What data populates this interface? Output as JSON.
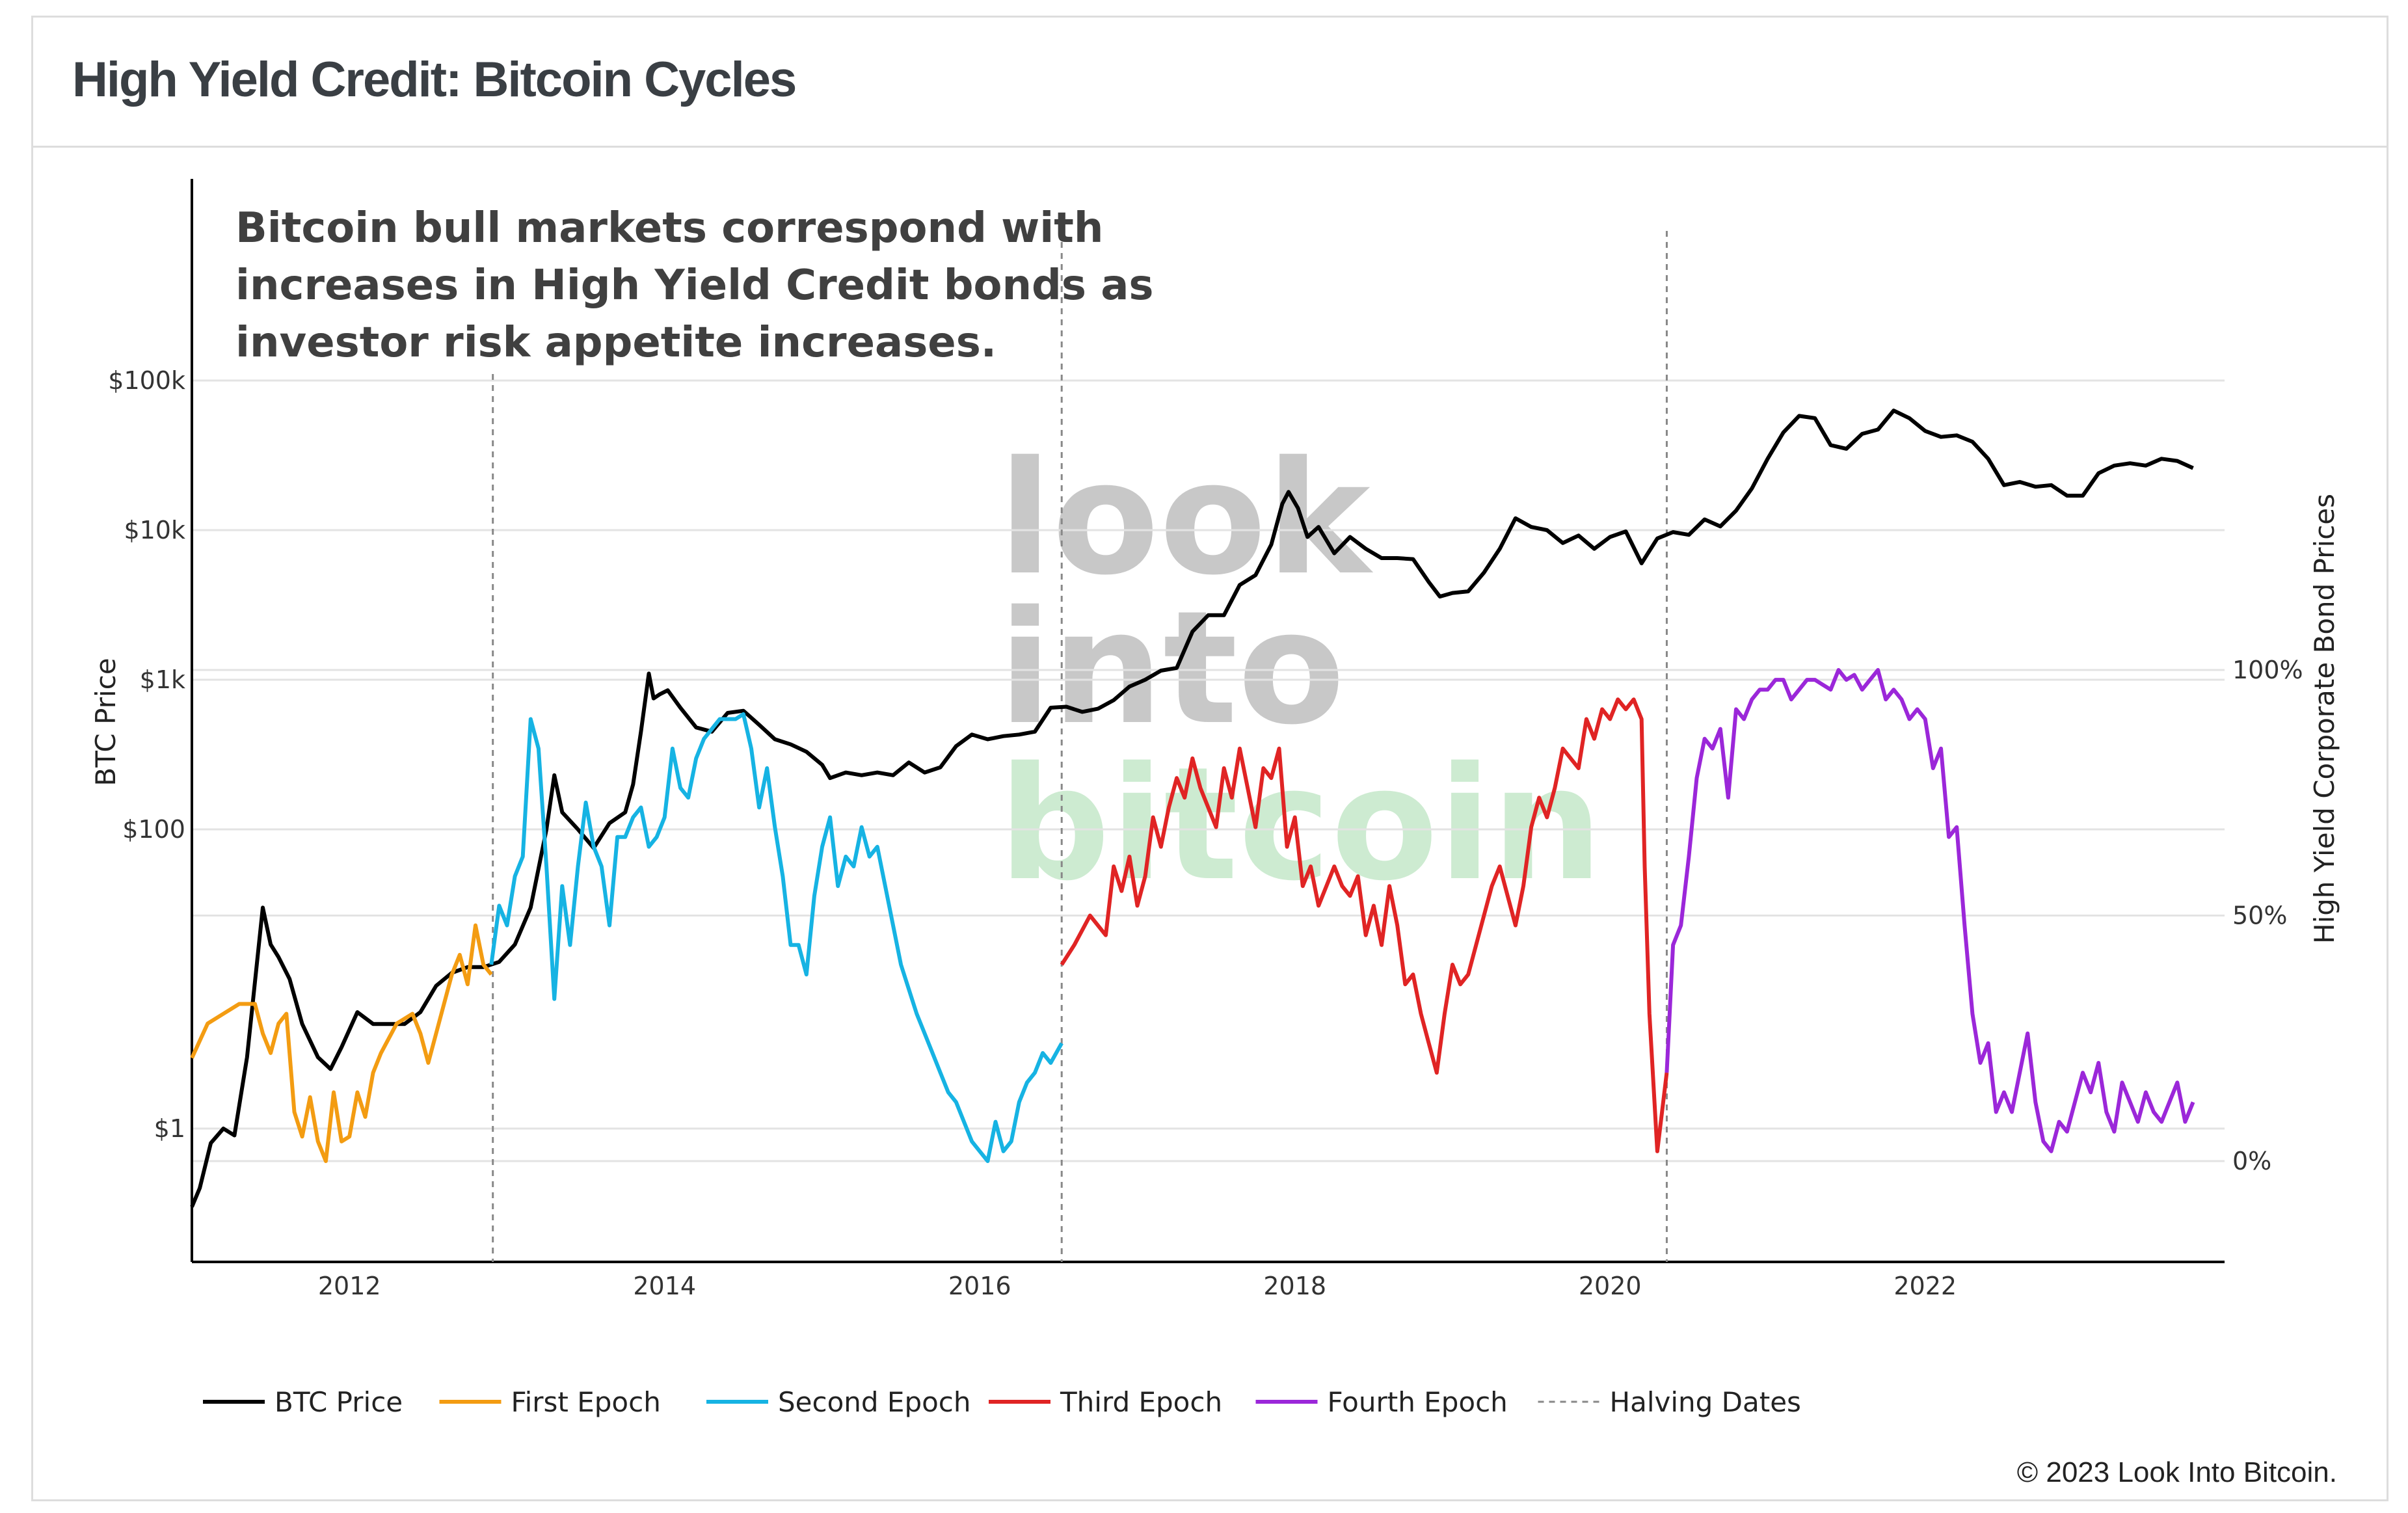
{
  "page": {
    "title": "High Yield Credit: Bitcoin Cycles",
    "copyright": "© 2023 Look Into Bitcoin."
  },
  "colors": {
    "btc": "#000000",
    "first": "#f39c12",
    "second": "#16b3e3",
    "third": "#e02424",
    "fourth": "#9b27d9",
    "halving": "#888888",
    "grid": "#e3e3e3",
    "watermark_gray": "#c8c8c8",
    "watermark_green": "#cdebd1"
  },
  "chart_data": {
    "type": "line",
    "annotation": [
      "Bitcoin bull markets correspond with",
      "increases in High Yield Credit bonds as",
      "investor risk appetite increases."
    ],
    "watermark": [
      "look",
      "into",
      "bitcoin"
    ],
    "xlim": [
      2011.0,
      2023.9
    ],
    "x_ticks": [
      2012,
      2014,
      2016,
      2018,
      2020,
      2022
    ],
    "x_tick_labels": [
      "2012",
      "2014",
      "2016",
      "2018",
      "2020",
      "2022"
    ],
    "ylabel_left": "BTC Price",
    "ylabel_right": "High Yield Corporate Bond Prices",
    "y_left_scale": "log",
    "y_left_ticks": [
      1,
      100,
      1000,
      10000,
      100000
    ],
    "y_left_tick_labels": [
      "$1",
      "$100",
      "$1k",
      "$10k",
      "$100k"
    ],
    "y_right_ticks": [
      0,
      50,
      100
    ],
    "y_right_tick_labels": [
      "0%",
      "50%",
      "100%"
    ],
    "grid": true,
    "halving_dates": [
      2012.91,
      2016.52,
      2020.36
    ],
    "legend": {
      "position": "bottom",
      "items": [
        {
          "label": "BTC Price",
          "key": "btc",
          "dash": false
        },
        {
          "label": "First Epoch",
          "key": "first",
          "dash": false
        },
        {
          "label": "Second Epoch",
          "key": "second",
          "dash": false
        },
        {
          "label": "Third Epoch",
          "key": "third",
          "dash": false
        },
        {
          "label": "Fourth Epoch",
          "key": "fourth",
          "dash": false
        },
        {
          "label": "Halving Dates",
          "key": "halving",
          "dash": true
        }
      ]
    },
    "series": [
      {
        "name": "BTC Price",
        "key": "btc",
        "axis": "left",
        "x": [
          2011.0,
          2011.05,
          2011.12,
          2011.2,
          2011.27,
          2011.35,
          2011.42,
          2011.45,
          2011.5,
          2011.55,
          2011.62,
          2011.7,
          2011.8,
          2011.88,
          2011.95,
          2012.05,
          2012.15,
          2012.25,
          2012.35,
          2012.45,
          2012.55,
          2012.65,
          2012.75,
          2012.85,
          2012.95,
          2013.05,
          2013.15,
          2013.25,
          2013.3,
          2013.35,
          2013.45,
          2013.55,
          2013.65,
          2013.75,
          2013.8,
          2013.85,
          2013.9,
          2013.93,
          2013.97,
          2014.02,
          2014.1,
          2014.2,
          2014.3,
          2014.4,
          2014.5,
          2014.6,
          2014.7,
          2014.8,
          2014.9,
          2015.0,
          2015.05,
          2015.15,
          2015.25,
          2015.35,
          2015.45,
          2015.55,
          2015.65,
          2015.75,
          2015.85,
          2015.95,
          2016.05,
          2016.15,
          2016.25,
          2016.35,
          2016.45,
          2016.55,
          2016.65,
          2016.75,
          2016.85,
          2016.95,
          2017.05,
          2017.15,
          2017.25,
          2017.35,
          2017.45,
          2017.55,
          2017.65,
          2017.75,
          2017.85,
          2017.92,
          2017.96,
          2018.02,
          2018.08,
          2018.15,
          2018.25,
          2018.35,
          2018.45,
          2018.55,
          2018.65,
          2018.75,
          2018.85,
          2018.92,
          2019.0,
          2019.1,
          2019.2,
          2019.3,
          2019.4,
          2019.5,
          2019.6,
          2019.7,
          2019.8,
          2019.9,
          2020.0,
          2020.1,
          2020.2,
          2020.3,
          2020.4,
          2020.5,
          2020.6,
          2020.7,
          2020.8,
          2020.9,
          2021.0,
          2021.1,
          2021.2,
          2021.3,
          2021.4,
          2021.5,
          2021.6,
          2021.7,
          2021.8,
          2021.9,
          2022.0,
          2022.1,
          2022.2,
          2022.3,
          2022.4,
          2022.5,
          2022.6,
          2022.7,
          2022.8,
          2022.9,
          2023.0,
          2023.1,
          2023.2,
          2023.3,
          2023.4,
          2023.5,
          2023.6,
          2023.7
        ],
        "y": [
          0.3,
          0.4,
          0.8,
          1.0,
          0.9,
          3.0,
          15,
          30,
          17,
          14,
          10,
          5,
          3,
          2.5,
          3.5,
          6,
          5,
          5,
          5,
          6,
          9,
          11,
          12,
          12,
          13,
          17,
          30,
          100,
          230,
          130,
          100,
          75,
          110,
          130,
          200,
          450,
          1100,
          750,
          800,
          850,
          650,
          480,
          450,
          600,
          620,
          500,
          400,
          370,
          330,
          270,
          220,
          240,
          230,
          240,
          230,
          280,
          240,
          260,
          360,
          430,
          400,
          420,
          430,
          450,
          650,
          660,
          610,
          640,
          730,
          900,
          1000,
          1150,
          1200,
          2100,
          2700,
          2700,
          4300,
          5000,
          8000,
          15000,
          18000,
          14000,
          9000,
          10500,
          7000,
          9000,
          7500,
          6500,
          6500,
          6400,
          4500,
          3600,
          3800,
          3900,
          5200,
          7500,
          12000,
          10500,
          10000,
          8200,
          9200,
          7500,
          9000,
          9800,
          6000,
          8800,
          9700,
          9300,
          11800,
          10600,
          13500,
          19000,
          30000,
          45000,
          58000,
          56000,
          37000,
          35000,
          44000,
          47000,
          63000,
          56000,
          46000,
          42000,
          43000,
          39000,
          30000,
          20000,
          21000,
          19500,
          20000,
          17000,
          17000,
          24000,
          27000,
          28000,
          27000,
          30000,
          29000,
          26000
        ]
      },
      {
        "name": "First Epoch",
        "key": "first",
        "axis": "right",
        "x": [
          2011.0,
          2011.1,
          2011.2,
          2011.3,
          2011.4,
          2011.45,
          2011.5,
          2011.55,
          2011.6,
          2011.65,
          2011.7,
          2011.75,
          2011.8,
          2011.85,
          2011.9,
          2011.95,
          2012.0,
          2012.05,
          2012.1,
          2012.15,
          2012.2,
          2012.3,
          2012.4,
          2012.45,
          2012.5,
          2012.6,
          2012.65,
          2012.7,
          2012.75,
          2012.8,
          2012.85,
          2012.9
        ],
        "y": [
          21,
          28,
          30,
          32,
          32,
          26,
          22,
          28,
          30,
          10,
          5,
          13,
          4,
          0,
          14,
          4,
          5,
          14,
          9,
          18,
          22,
          28,
          30,
          26,
          20,
          32,
          38,
          42,
          36,
          48,
          40,
          38
        ]
      },
      {
        "name": "Second Epoch",
        "key": "second",
        "axis": "right",
        "x": [
          2012.9,
          2012.95,
          2013.0,
          2013.05,
          2013.1,
          2013.15,
          2013.2,
          2013.25,
          2013.3,
          2013.35,
          2013.4,
          2013.45,
          2013.5,
          2013.55,
          2013.6,
          2013.65,
          2013.7,
          2013.75,
          2013.8,
          2013.85,
          2013.9,
          2013.95,
          2014.0,
          2014.05,
          2014.1,
          2014.15,
          2014.2,
          2014.25,
          2014.3,
          2014.35,
          2014.4,
          2014.45,
          2014.5,
          2014.55,
          2014.6,
          2014.65,
          2014.7,
          2014.75,
          2014.8,
          2014.85,
          2014.9,
          2014.95,
          2015.0,
          2015.05,
          2015.1,
          2015.15,
          2015.2,
          2015.25,
          2015.3,
          2015.35,
          2015.4,
          2015.45,
          2015.5,
          2015.55,
          2015.6,
          2015.65,
          2015.7,
          2015.75,
          2015.8,
          2015.85,
          2015.9,
          2015.95,
          2016.0,
          2016.05,
          2016.1,
          2016.15,
          2016.2,
          2016.25,
          2016.3,
          2016.35,
          2016.4,
          2016.45,
          2016.52
        ],
        "y": [
          40,
          52,
          48,
          58,
          62,
          90,
          84,
          60,
          33,
          56,
          44,
          60,
          73,
          64,
          60,
          48,
          66,
          66,
          70,
          72,
          64,
          66,
          70,
          84,
          76,
          74,
          82,
          86,
          88,
          90,
          90,
          90,
          91,
          84,
          72,
          80,
          68,
          58,
          44,
          44,
          38,
          54,
          64,
          70,
          56,
          62,
          60,
          68,
          62,
          64,
          56,
          48,
          40,
          35,
          30,
          26,
          22,
          18,
          14,
          12,
          8,
          4,
          2,
          0,
          8,
          2,
          4,
          12,
          16,
          18,
          22,
          20,
          24
        ]
      },
      {
        "name": "Third Epoch",
        "key": "third",
        "axis": "right",
        "x": [
          2016.52,
          2016.6,
          2016.7,
          2016.8,
          2016.85,
          2016.9,
          2016.95,
          2017.0,
          2017.05,
          2017.1,
          2017.15,
          2017.2,
          2017.25,
          2017.3,
          2017.35,
          2017.4,
          2017.45,
          2017.5,
          2017.55,
          2017.6,
          2017.65,
          2017.7,
          2017.75,
          2017.8,
          2017.85,
          2017.9,
          2017.95,
          2018.0,
          2018.05,
          2018.1,
          2018.15,
          2018.2,
          2018.25,
          2018.3,
          2018.35,
          2018.4,
          2018.45,
          2018.5,
          2018.55,
          2018.6,
          2018.65,
          2018.7,
          2018.75,
          2018.8,
          2018.85,
          2018.9,
          2018.95,
          2019.0,
          2019.05,
          2019.1,
          2019.15,
          2019.2,
          2019.25,
          2019.3,
          2019.35,
          2019.4,
          2019.45,
          2019.5,
          2019.55,
          2019.6,
          2019.65,
          2019.7,
          2019.75,
          2019.8,
          2019.85,
          2019.9,
          2019.95,
          2020.0,
          2020.05,
          2020.1,
          2020.15,
          2020.2,
          2020.22,
          2020.25,
          2020.3,
          2020.36
        ],
        "y": [
          40,
          44,
          50,
          46,
          60,
          55,
          62,
          52,
          58,
          70,
          64,
          72,
          78,
          74,
          82,
          76,
          72,
          68,
          80,
          74,
          84,
          76,
          68,
          80,
          78,
          84,
          64,
          70,
          56,
          60,
          52,
          56,
          60,
          56,
          54,
          58,
          46,
          52,
          44,
          56,
          48,
          36,
          38,
          30,
          24,
          18,
          30,
          40,
          36,
          38,
          44,
          50,
          56,
          60,
          54,
          48,
          56,
          68,
          74,
          70,
          76,
          84,
          82,
          80,
          90,
          86,
          92,
          90,
          94,
          92,
          94,
          90,
          60,
          30,
          2,
          18
        ]
      },
      {
        "name": "Fourth Epoch",
        "key": "fourth",
        "axis": "right",
        "x": [
          2020.36,
          2020.4,
          2020.45,
          2020.5,
          2020.55,
          2020.6,
          2020.65,
          2020.7,
          2020.75,
          2020.8,
          2020.85,
          2020.9,
          2020.95,
          2021.0,
          2021.05,
          2021.1,
          2021.15,
          2021.2,
          2021.25,
          2021.3,
          2021.35,
          2021.4,
          2021.45,
          2021.5,
          2021.55,
          2021.6,
          2021.65,
          2021.7,
          2021.75,
          2021.8,
          2021.85,
          2021.9,
          2021.95,
          2022.0,
          2022.05,
          2022.1,
          2022.15,
          2022.2,
          2022.25,
          2022.3,
          2022.35,
          2022.4,
          2022.45,
          2022.5,
          2022.55,
          2022.6,
          2022.65,
          2022.7,
          2022.75,
          2022.8,
          2022.85,
          2022.9,
          2022.95,
          2023.0,
          2023.05,
          2023.1,
          2023.15,
          2023.2,
          2023.25,
          2023.3,
          2023.35,
          2023.4,
          2023.45,
          2023.5,
          2023.55,
          2023.6,
          2023.65,
          2023.7
        ],
        "y": [
          18,
          44,
          48,
          62,
          78,
          86,
          84,
          88,
          74,
          92,
          90,
          94,
          96,
          96,
          98,
          98,
          94,
          96,
          98,
          98,
          97,
          96,
          100,
          98,
          99,
          96,
          98,
          100,
          94,
          96,
          94,
          90,
          92,
          90,
          80,
          84,
          66,
          68,
          48,
          30,
          20,
          24,
          10,
          14,
          10,
          18,
          26,
          12,
          4,
          2,
          8,
          6,
          12,
          18,
          14,
          20,
          10,
          6,
          16,
          12,
          8,
          14,
          10,
          8,
          12,
          16,
          8,
          12
        ]
      }
    ]
  }
}
